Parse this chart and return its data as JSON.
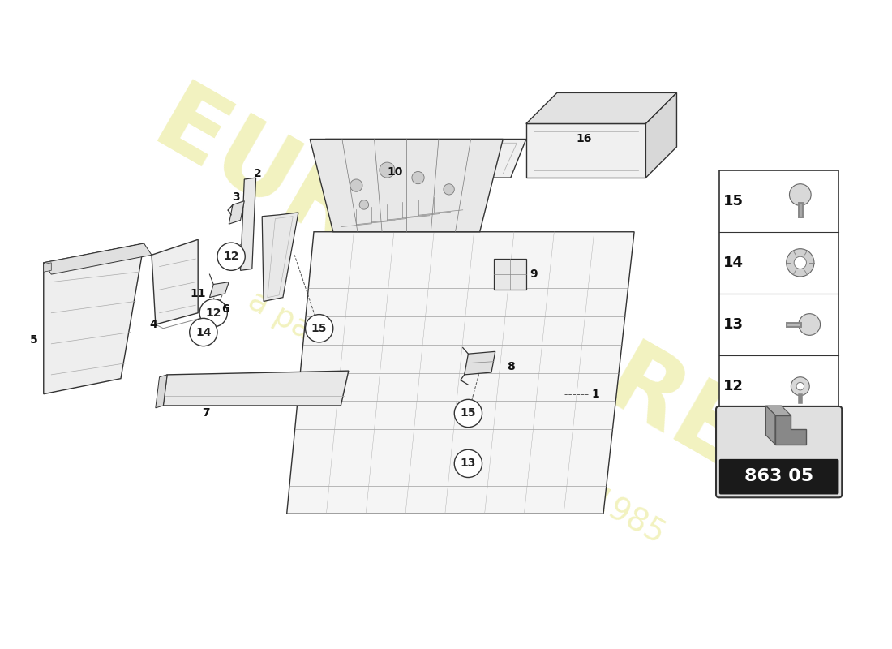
{
  "bg_color": "#ffffff",
  "watermark_color": "#cccc00",
  "side_panel": {
    "items": [
      {
        "num": 15
      },
      {
        "num": 14
      },
      {
        "num": 13
      },
      {
        "num": 12
      }
    ]
  },
  "badge_text": "863 05"
}
